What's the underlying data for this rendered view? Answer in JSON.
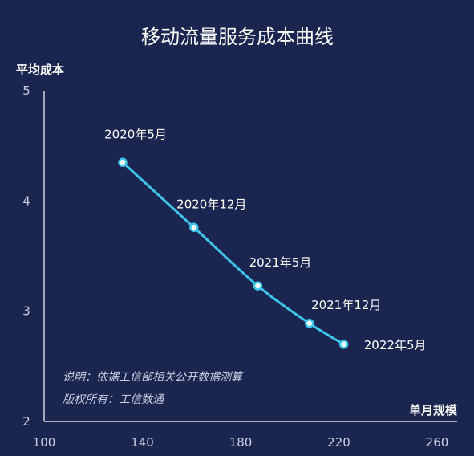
{
  "chart_data": {
    "type": "line",
    "title": "移动流量服务成本曲线",
    "ylabel": "平均成本",
    "xlabel": "单月规模",
    "xlim": [
      100,
      260
    ],
    "ylim": [
      2,
      5
    ],
    "xticks": [
      100,
      140,
      180,
      220,
      260
    ],
    "yticks": [
      2,
      3,
      4,
      5
    ],
    "grid": false,
    "series": [
      {
        "points": [
          {
            "x": 132,
            "y": 4.35,
            "label": "2020年5月"
          },
          {
            "x": 161,
            "y": 3.76,
            "label": "2020年12月"
          },
          {
            "x": 187,
            "y": 3.23,
            "label": "2021年5月"
          },
          {
            "x": 208,
            "y": 2.89,
            "label": "2021年12月"
          },
          {
            "x": 222,
            "y": 2.7,
            "label": "2022年5月"
          }
        ]
      }
    ],
    "notes": [
      "说明：依据工信部相关公开数据测算",
      "版权所有：工信数通"
    ]
  },
  "colors": {
    "background": "#1a2550",
    "line": "#3fc4ea",
    "axis": "#ffffff",
    "text": "#ffffff"
  }
}
